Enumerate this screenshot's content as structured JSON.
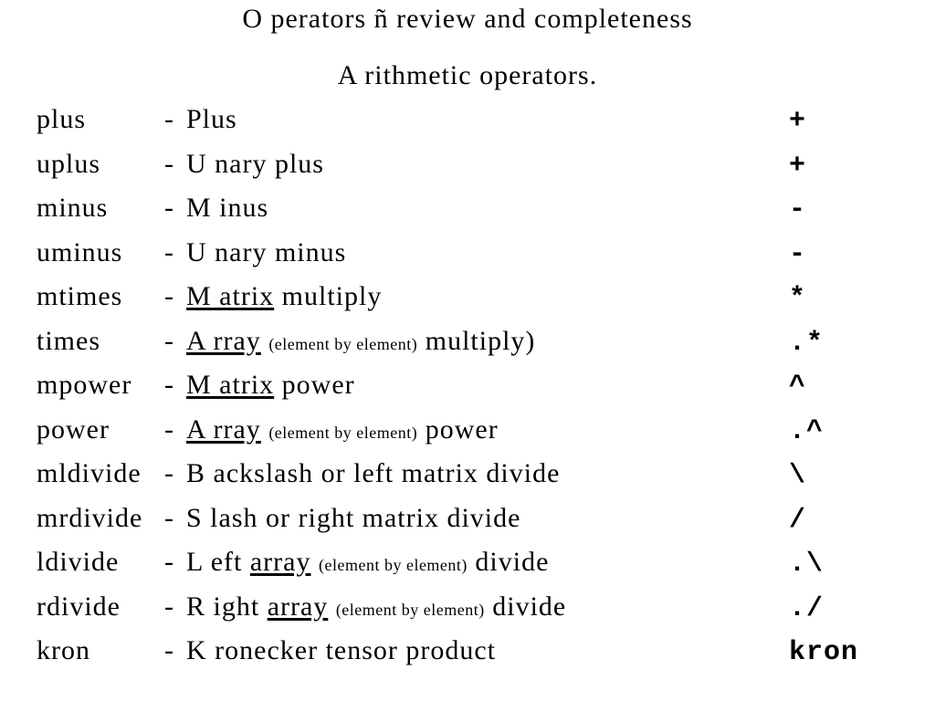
{
  "title": "O perators ñ review and completeness",
  "subtitle": "A rithmetic operators.",
  "ebe": "(element by element)",
  "rows": [
    {
      "name": "plus",
      "desc_plain": "Plus",
      "sym": "+"
    },
    {
      "name": "uplus",
      "desc_plain": "U nary plus",
      "sym": "+"
    },
    {
      "name": "minus",
      "desc_plain": "M inus",
      "sym": "-"
    },
    {
      "name": "uminus",
      "desc_plain": "U nary minus",
      "sym": "-"
    },
    {
      "name": "mtimes",
      "u1": "M atrix",
      "tail1": " multiply",
      "sym": "*"
    },
    {
      "name": "times",
      "u1": "A rray",
      "ebe": true,
      "tail1": " multiply)",
      "sym": ".*"
    },
    {
      "name": "mpower",
      "u1": "M atrix",
      "tail1": " power",
      "sym": " ^"
    },
    {
      "name": "power",
      "u1": "A rray",
      "ebe": true,
      "tail1": " power",
      "sym": ".^"
    },
    {
      "name": "mldivide",
      "desc_plain": "B ackslash or left matrix divide",
      "sym": "\\"
    },
    {
      "name": "mrdivide",
      "desc_plain": "S lash or right matrix divide",
      "sym": " /"
    },
    {
      "name": "ldivide",
      "pre": "L eft ",
      "u1": "array",
      "ebe": true,
      "tail1": " divide",
      "sym": ".\\"
    },
    {
      "name": "rdivide",
      "pre": "R ight ",
      "u1": "array",
      "ebe": true,
      "tail1": " divide",
      "sym": "./"
    },
    {
      "name": "kron",
      "desc_plain": "K ronecker tensor product",
      "sym": "kron"
    }
  ]
}
